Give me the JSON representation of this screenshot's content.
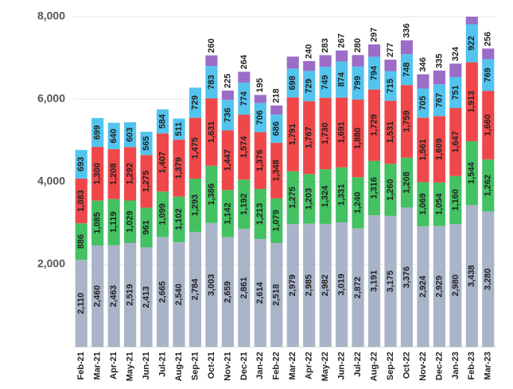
{
  "chart_data": {
    "type": "stacked-bar",
    "categories": [
      "Feb-21",
      "Mar-21",
      "Apr-21",
      "May-21",
      "Jun-21",
      "Jul-21",
      "Aug-21",
      "Sep-21",
      "Oct-21",
      "Nov-21",
      "Dec-21",
      "Jan-22",
      "Feb-22",
      "Mar-22",
      "Apr-22",
      "May-22",
      "Jun-22",
      "Jul-22",
      "Aug-22",
      "Sep-22",
      "Oct-22",
      "Nov-22",
      "Dec-22",
      "Jan-23",
      "Feb-23",
      "Mar-23"
    ],
    "series": [
      {
        "color": "#aab4c8",
        "values": [
          2110,
          2460,
          2463,
          2519,
          2413,
          2665,
          2540,
          2784,
          3003,
          2659,
          2861,
          2614,
          2518,
          2979,
          2985,
          2982,
          3019,
          2872,
          3191,
          3175,
          3376,
          2924,
          2929,
          2980,
          3438,
          3280
        ],
        "value_labels": [
          "2,110",
          "2,460",
          "2,463",
          "2,519",
          "2,413",
          "2,665",
          "2,540",
          "2,784",
          "3,003",
          "2,659",
          "2,861",
          "2,614",
          "2,518",
          "2,979",
          "2,985",
          "2,982",
          "3,019",
          "2,872",
          "3,191",
          "3,175",
          "3,376",
          "2,924",
          "2,929",
          "2,980",
          "3,438",
          "3,280"
        ]
      },
      {
        "color": "#43c163",
        "values": [
          886,
          1085,
          1119,
          1029,
          961,
          1099,
          1102,
          1293,
          1386,
          1142,
          1192,
          1213,
          1079,
          1275,
          1203,
          1324,
          1331,
          1240,
          1316,
          1260,
          1208,
          1069,
          1054,
          1160,
          1544,
          1262
        ],
        "value_labels": [
          "886",
          "1,085",
          "1,119",
          "1,029",
          "961",
          "1,099",
          "1,102",
          "1,293",
          "1,386",
          "1,142",
          "1,192",
          "1,213",
          "1,079",
          "1,275",
          "1,203",
          "1,324",
          "1,331",
          "1,240",
          "1,316",
          "1,260",
          "1,208",
          "1,069",
          "1,054",
          "1,160",
          "1,544",
          "1,262"
        ]
      },
      {
        "color": "#f0484a",
        "values": [
          1083,
          1300,
          1208,
          1292,
          1275,
          1407,
          1379,
          1475,
          1631,
          1447,
          1574,
          1376,
          1348,
          1791,
          1767,
          1730,
          1691,
          1880,
          1729,
          1531,
          1759,
          1561,
          1609,
          1647,
          1913,
          1660
        ],
        "value_labels": [
          "1,083",
          "1,300",
          "1,208",
          "1,292",
          "1,275",
          "1,407",
          "1,379",
          "1,475",
          "1,631",
          "1,447",
          "1,574",
          "1,376",
          "1,348",
          "1,791",
          "1,767",
          "1,730",
          "1,691",
          "1,880",
          "1,729",
          "1,531",
          "1,759",
          "1,561",
          "1,609",
          "1,647",
          "1,913",
          "1,660"
        ]
      },
      {
        "color": "#52c4ee",
        "values": [
          693,
          699,
          640,
          603,
          565,
          584,
          511,
          729,
          783,
          736,
          774,
          706,
          686,
          698,
          729,
          749,
          874,
          799,
          794,
          715,
          748,
          705,
          767,
          751,
          922,
          769
        ]
      },
      {
        "color": "#9b6dc6",
        "values": [
          null,
          null,
          null,
          null,
          null,
          null,
          null,
          null,
          260,
          225,
          264,
          195,
          218,
          290,
          240,
          283,
          267,
          280,
          297,
          277,
          336,
          346,
          335,
          324,
          250,
          256
        ],
        "value_labels": [
          null,
          null,
          null,
          null,
          null,
          null,
          null,
          null,
          "260",
          "225",
          "264",
          "195",
          "218",
          null,
          "240",
          "283",
          "267",
          "280",
          "297",
          "277",
          "336",
          "346",
          "335",
          "324",
          null,
          "256"
        ]
      }
    ],
    "ylim": [
      0,
      8000
    ],
    "yticks": [
      {
        "value": 2000,
        "label": "2,000"
      },
      {
        "value": 4000,
        "label": "4,000"
      },
      {
        "value": 6000,
        "label": "6,000"
      },
      {
        "value": 8000,
        "label": "8,000"
      }
    ],
    "grid": true
  }
}
